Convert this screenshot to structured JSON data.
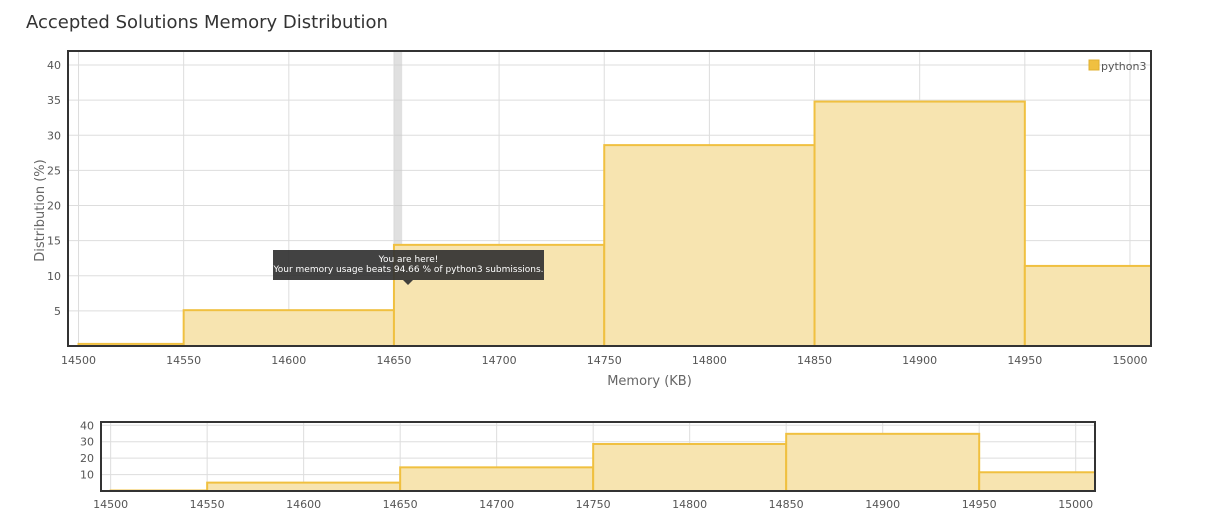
{
  "page": {
    "title": "Accepted Solutions Memory Distribution",
    "tooltip": {
      "line1": "You are here!",
      "line2": "Your memory usage beats 94.66 % of python3 submissions."
    }
  },
  "chart_data": [
    {
      "type": "bar",
      "title": "",
      "xlabel": "Memory (KB)",
      "ylabel": "Distribution (%)",
      "xlim": [
        14495,
        15010
      ],
      "ylim": [
        0,
        42
      ],
      "x_ticks": [
        14500,
        14550,
        14600,
        14650,
        14700,
        14750,
        14800,
        14850,
        14900,
        14950,
        15000
      ],
      "y_ticks": [
        5,
        10,
        15,
        20,
        25,
        30,
        35,
        40
      ],
      "bins": [
        {
          "x0": 14500,
          "x1": 14550,
          "value": 0.3
        },
        {
          "x0": 14550,
          "x1": 14650,
          "value": 5.1
        },
        {
          "x0": 14650,
          "x1": 14750,
          "value": 14.4
        },
        {
          "x0": 14750,
          "x1": 14850,
          "value": 28.6
        },
        {
          "x0": 14850,
          "x1": 14950,
          "value": 34.8
        },
        {
          "x0": 14950,
          "x1": 15010,
          "value": 11.4
        }
      ],
      "highlight_x": 14652,
      "legend": {
        "entries": [
          "python3"
        ],
        "placement": "top-right"
      },
      "grid": true,
      "colors": {
        "fill": "#f7e4b0",
        "stroke": "#f0c040",
        "grid": "#dddddd",
        "frame": "#333333"
      }
    },
    {
      "type": "bar",
      "title": "",
      "xlabel": "",
      "ylabel": "",
      "xlim": [
        14495,
        15010
      ],
      "ylim": [
        0,
        42
      ],
      "x_ticks": [
        14500,
        14550,
        14600,
        14650,
        14700,
        14750,
        14800,
        14850,
        14900,
        14950,
        15000
      ],
      "y_ticks": [
        10,
        20,
        30,
        40
      ],
      "bins": [
        {
          "x0": 14500,
          "x1": 14550,
          "value": 0.3
        },
        {
          "x0": 14550,
          "x1": 14650,
          "value": 5.1
        },
        {
          "x0": 14650,
          "x1": 14750,
          "value": 14.4
        },
        {
          "x0": 14750,
          "x1": 14850,
          "value": 28.6
        },
        {
          "x0": 14850,
          "x1": 14950,
          "value": 34.8
        },
        {
          "x0": 14950,
          "x1": 15010,
          "value": 11.4
        }
      ],
      "grid": true,
      "colors": {
        "fill": "#f7e4b0",
        "stroke": "#f0c040",
        "grid": "#dddddd",
        "frame": "#333333"
      }
    }
  ]
}
